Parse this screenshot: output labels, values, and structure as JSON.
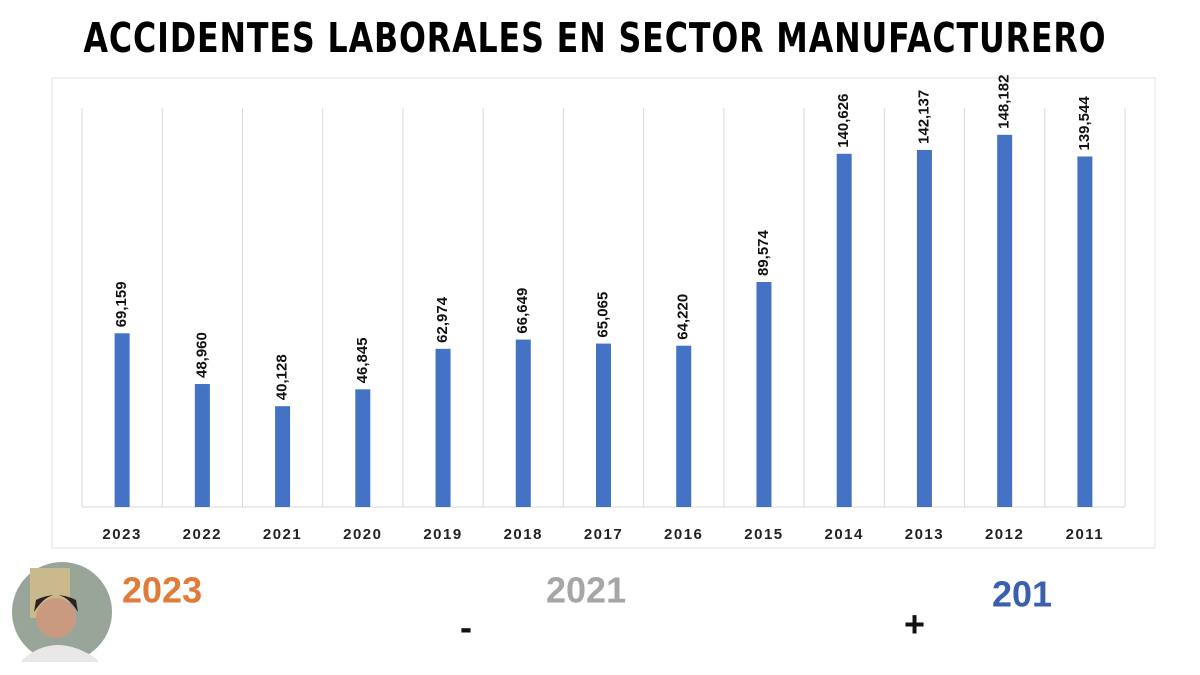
{
  "chart_data": {
    "type": "bar",
    "title": "ACCIDENTES LABORALES EN SECTOR MANUFACTURERO",
    "categories": [
      "2023",
      "2022",
      "2021",
      "2020",
      "2019",
      "2018",
      "2017",
      "2016",
      "2015",
      "2014",
      "2013",
      "2012",
      "2011"
    ],
    "values": [
      69159,
      48960,
      40128,
      46845,
      62974,
      66649,
      65065,
      64220,
      89574,
      140626,
      142137,
      148182,
      139544
    ],
    "value_labels": [
      "69,159",
      "48,960",
      "40,128",
      "46,845",
      "62,974",
      "66,649",
      "65,065",
      "64,220",
      "89,574",
      "140,626",
      "142,137",
      "148,182",
      "139,544"
    ],
    "color": "#4472c4",
    "ylim": [
      0,
      170000
    ],
    "grid": true,
    "annotations": [
      {
        "text": "2023",
        "color": "#e07b39"
      },
      {
        "text": "2021",
        "color": "#a6a6a6"
      },
      {
        "text": "201",
        "color": "#3b5fb0"
      },
      {
        "text": "-",
        "color": "#111111"
      },
      {
        "text": "+",
        "color": "#111111"
      }
    ]
  }
}
